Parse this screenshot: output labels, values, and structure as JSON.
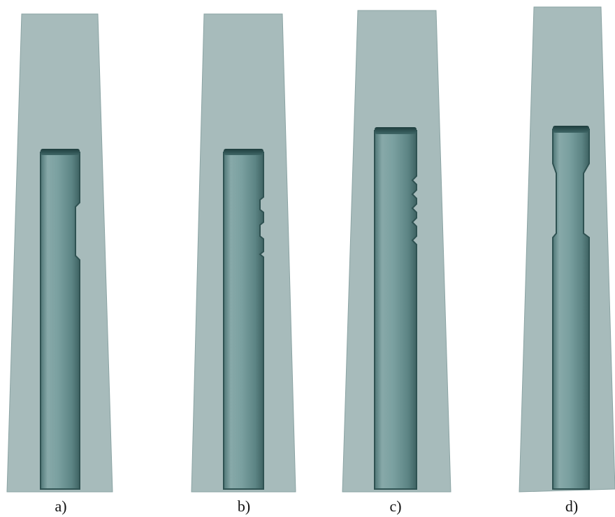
{
  "panels": [
    {
      "label": "a)",
      "variant": "plain shaft with single side step"
    },
    {
      "label": "b)",
      "variant": "shaft with stepped side profile"
    },
    {
      "label": "c)",
      "variant": "shaft with multiple side notches"
    },
    {
      "label": "d)",
      "variant": "shaft with reduced upper neck"
    }
  ],
  "colors": {
    "tapered_body": "#a7bbbb",
    "tapered_body_edge": "#7f9797",
    "shaft_light": "#87a9a9",
    "shaft_mid": "#6e9595",
    "shaft_dark": "#4c7171",
    "shaft_outline": "#2f5252",
    "cap_dark": "#234343",
    "background": "#ffffff"
  }
}
